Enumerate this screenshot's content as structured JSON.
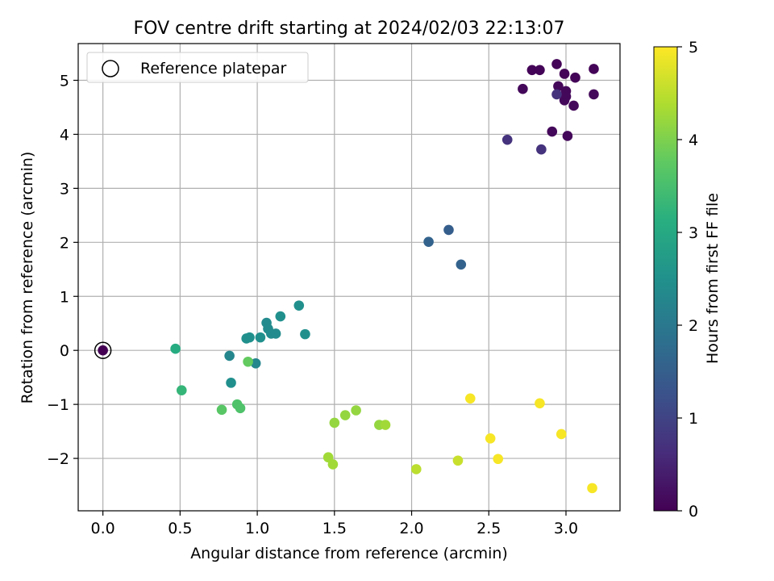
{
  "chart_data": {
    "type": "scatter",
    "title": "FOV centre drift starting at 2024/02/03 22:13:07",
    "xlabel": "Angular distance from reference (arcmin)",
    "ylabel": "Rotation from reference (arcmin)",
    "xlim": [
      -0.16,
      3.35
    ],
    "ylim": [
      -2.97,
      5.68
    ],
    "xticks": [
      "0.0",
      "0.5",
      "1.0",
      "1.5",
      "2.0",
      "2.5",
      "3.0"
    ],
    "yticks": [
      "−2",
      "−1",
      "0",
      "1",
      "2",
      "3",
      "4",
      "5"
    ],
    "grid": true,
    "legend": {
      "location": "upper-left",
      "entries": [
        {
          "label": "Reference platepar",
          "marker": "hollow-circle"
        }
      ]
    },
    "reference_point": {
      "x": 0.0,
      "y": 0.0
    },
    "colorbar": {
      "label": "Hours from first FF file",
      "colormap": "viridis",
      "range": [
        0,
        5
      ],
      "ticks": [
        "0",
        "1",
        "2",
        "3",
        "4",
        "5"
      ]
    },
    "points": [
      {
        "x": 2.78,
        "y": 5.19,
        "hours": 0.05
      },
      {
        "x": 2.83,
        "y": 5.19,
        "hours": 0.05
      },
      {
        "x": 2.94,
        "y": 5.3,
        "hours": 0.05
      },
      {
        "x": 2.99,
        "y": 5.12,
        "hours": 0.05
      },
      {
        "x": 3.06,
        "y": 5.05,
        "hours": 0.05
      },
      {
        "x": 3.18,
        "y": 5.21,
        "hours": 0.05
      },
      {
        "x": 2.72,
        "y": 4.84,
        "hours": 0.1
      },
      {
        "x": 2.95,
        "y": 4.89,
        "hours": 0.1
      },
      {
        "x": 3.0,
        "y": 4.8,
        "hours": 0.1
      },
      {
        "x": 3.0,
        "y": 4.7,
        "hours": 0.1
      },
      {
        "x": 2.99,
        "y": 4.63,
        "hours": 0.1
      },
      {
        "x": 3.05,
        "y": 4.53,
        "hours": 0.1
      },
      {
        "x": 3.18,
        "y": 4.74,
        "hours": 0.1
      },
      {
        "x": 2.91,
        "y": 4.05,
        "hours": 0.1
      },
      {
        "x": 3.01,
        "y": 3.97,
        "hours": 0.1
      },
      {
        "x": 2.94,
        "y": 4.74,
        "hours": 0.75
      },
      {
        "x": 2.62,
        "y": 3.9,
        "hours": 0.75
      },
      {
        "x": 2.84,
        "y": 3.72,
        "hours": 0.75
      },
      {
        "x": 2.24,
        "y": 2.23,
        "hours": 1.5
      },
      {
        "x": 2.11,
        "y": 2.01,
        "hours": 1.6
      },
      {
        "x": 2.32,
        "y": 1.59,
        "hours": 1.6
      },
      {
        "x": 1.27,
        "y": 0.83,
        "hours": 2.5
      },
      {
        "x": 1.15,
        "y": 0.63,
        "hours": 2.5
      },
      {
        "x": 1.06,
        "y": 0.51,
        "hours": 2.4
      },
      {
        "x": 1.07,
        "y": 0.4,
        "hours": 2.4
      },
      {
        "x": 1.09,
        "y": 0.31,
        "hours": 2.4
      },
      {
        "x": 1.12,
        "y": 0.31,
        "hours": 2.4
      },
      {
        "x": 1.31,
        "y": 0.3,
        "hours": 2.5
      },
      {
        "x": 0.95,
        "y": 0.24,
        "hours": 2.5
      },
      {
        "x": 0.93,
        "y": 0.22,
        "hours": 2.5
      },
      {
        "x": 1.02,
        "y": 0.24,
        "hours": 2.5
      },
      {
        "x": 0.82,
        "y": -0.1,
        "hours": 2.3
      },
      {
        "x": 0.99,
        "y": -0.24,
        "hours": 2.3
      },
      {
        "x": 0.83,
        "y": -0.6,
        "hours": 2.5
      },
      {
        "x": 0.47,
        "y": 0.03,
        "hours": 3.1
      },
      {
        "x": 0.51,
        "y": -0.74,
        "hours": 3.3
      },
      {
        "x": 0.94,
        "y": -0.21,
        "hours": 3.8
      },
      {
        "x": 0.87,
        "y": -1.0,
        "hours": 3.6
      },
      {
        "x": 0.89,
        "y": -1.07,
        "hours": 3.6
      },
      {
        "x": 0.77,
        "y": -1.1,
        "hours": 3.7
      },
      {
        "x": 1.64,
        "y": -1.11,
        "hours": 4.2
      },
      {
        "x": 1.57,
        "y": -1.2,
        "hours": 4.2
      },
      {
        "x": 1.5,
        "y": -1.34,
        "hours": 4.2
      },
      {
        "x": 1.79,
        "y": -1.38,
        "hours": 4.2
      },
      {
        "x": 1.83,
        "y": -1.38,
        "hours": 4.3
      },
      {
        "x": 1.46,
        "y": -1.98,
        "hours": 4.3
      },
      {
        "x": 1.49,
        "y": -2.11,
        "hours": 4.3
      },
      {
        "x": 2.03,
        "y": -2.2,
        "hours": 4.5
      },
      {
        "x": 2.3,
        "y": -2.04,
        "hours": 4.6
      },
      {
        "x": 2.38,
        "y": -0.89,
        "hours": 4.95
      },
      {
        "x": 2.51,
        "y": -1.63,
        "hours": 4.95
      },
      {
        "x": 2.56,
        "y": -2.01,
        "hours": 4.95
      },
      {
        "x": 2.83,
        "y": -0.98,
        "hours": 4.95
      },
      {
        "x": 2.97,
        "y": -1.55,
        "hours": 4.95
      },
      {
        "x": 3.17,
        "y": -2.55,
        "hours": 4.95
      }
    ]
  }
}
